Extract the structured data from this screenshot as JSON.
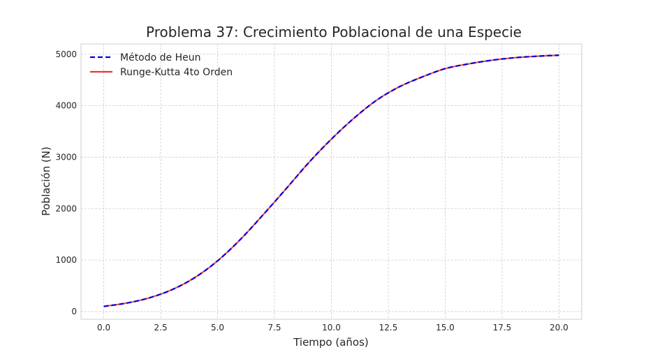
{
  "chart_data": {
    "type": "line",
    "title": "Problema 37: Crecimiento Poblacional de una Especie",
    "xlabel": "Tiempo (años)",
    "ylabel": "Población (N)",
    "xlim": [
      -1.0,
      21.0
    ],
    "ylim": [
      -150,
      5200
    ],
    "xticks": [
      "0.0",
      "2.5",
      "5.0",
      "7.5",
      "10.0",
      "12.5",
      "15.0",
      "17.5",
      "20.0"
    ],
    "yticks": [
      "0",
      "1000",
      "2000",
      "3000",
      "4000",
      "5000"
    ],
    "grid": true,
    "legend_position": "top-left",
    "x": [
      0,
      1,
      2,
      3,
      4,
      5,
      6,
      7,
      8,
      9,
      10,
      11,
      12,
      13,
      14,
      15,
      16,
      17,
      18,
      19,
      20
    ],
    "series": [
      {
        "name": "Método de Heun",
        "color": "#0000dd",
        "style": "dashed",
        "values": [
          100,
          164,
          266,
          425,
          660,
          985,
          1400,
          1880,
          2380,
          2890,
          3350,
          3760,
          4110,
          4370,
          4560,
          4720,
          4810,
          4880,
          4930,
          4960,
          4980
        ]
      },
      {
        "name": "Runge-Kutta 4to Orden",
        "color": "#ee3333",
        "style": "solid",
        "values": [
          100,
          164,
          266,
          425,
          660,
          985,
          1400,
          1880,
          2380,
          2890,
          3350,
          3760,
          4110,
          4370,
          4560,
          4720,
          4810,
          4880,
          4930,
          4960,
          4980
        ]
      }
    ]
  }
}
